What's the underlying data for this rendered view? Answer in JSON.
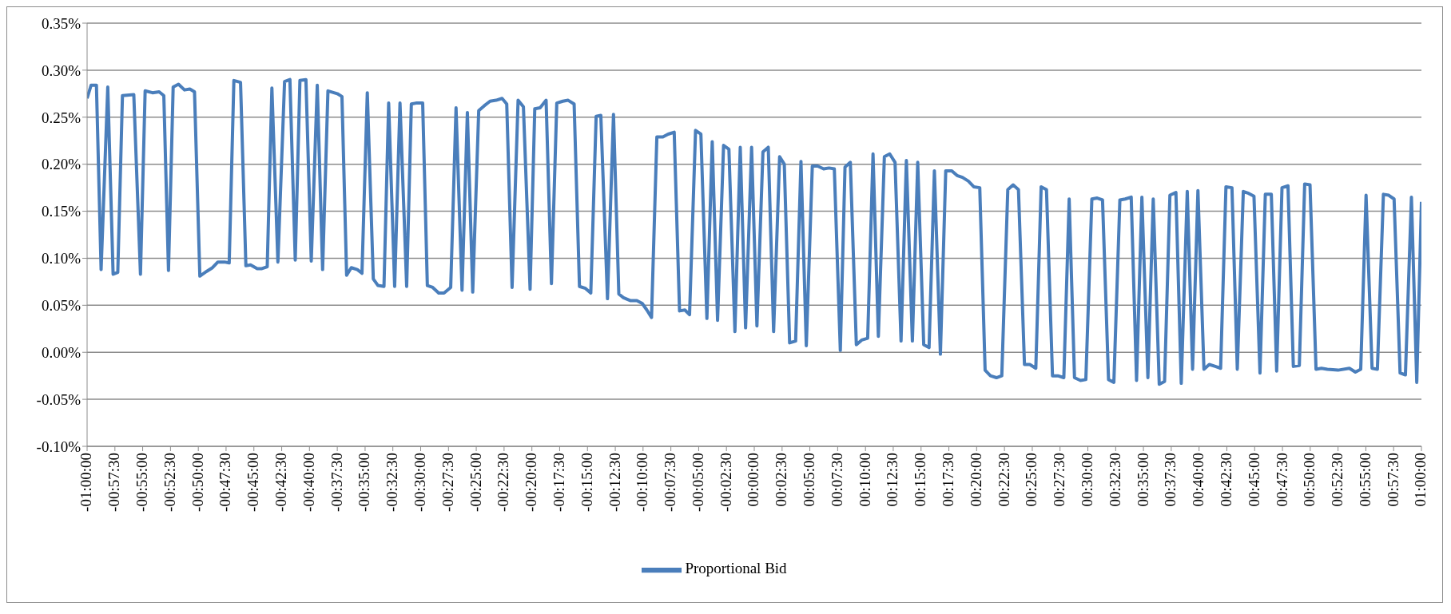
{
  "chart_data": {
    "type": "line",
    "x": [
      -1.0,
      -0.994,
      -0.986,
      -0.979,
      -0.969,
      -0.961,
      -0.954,
      -0.947,
      -0.93,
      -0.92,
      -0.913,
      -0.902,
      -0.892,
      -0.885,
      -0.878,
      -0.871,
      -0.863,
      -0.854,
      -0.846,
      -0.839,
      -0.831,
      -0.821,
      -0.812,
      -0.804,
      -0.794,
      -0.787,
      -0.78,
      -0.77,
      -0.762,
      -0.755,
      -0.745,
      -0.738,
      -0.73,
      -0.723,
      -0.714,
      -0.704,
      -0.696,
      -0.688,
      -0.681,
      -0.672,
      -0.664,
      -0.655,
      -0.647,
      -0.639,
      -0.625,
      -0.618,
      -0.611,
      -0.604,
      -0.595,
      -0.588,
      -0.58,
      -0.571,
      -0.564,
      -0.555,
      -0.548,
      -0.539,
      -0.531,
      -0.521,
      -0.514,
      -0.507,
      -0.497,
      -0.49,
      -0.482,
      -0.473,
      -0.465,
      -0.455,
      -0.447,
      -0.438,
      -0.43,
      -0.422,
      -0.413,
      -0.405,
      -0.396,
      -0.387,
      -0.378,
      -0.371,
      -0.363,
      -0.354,
      -0.346,
      -0.336,
      -0.329,
      -0.321,
      -0.312,
      -0.304,
      -0.296,
      -0.287,
      -0.279,
      -0.27,
      -0.262,
      -0.253,
      -0.245,
      -0.237,
      -0.23,
      -0.22,
      -0.211,
      -0.203,
      -0.196,
      -0.186,
      -0.176,
      -0.168,
      -0.161,
      -0.154,
      -0.146,
      -0.137,
      -0.129,
      -0.12,
      -0.112,
      -0.104,
      -0.097,
      -0.088,
      -0.08,
      -0.071,
      -0.063,
      -0.055,
      -0.046,
      -0.038,
      -0.029,
      -0.021,
      -0.013,
      -0.004,
      0.004,
      0.013,
      0.021,
      0.029,
      0.038,
      0.045,
      0.053,
      0.062,
      0.07,
      0.078,
      0.087,
      0.095,
      0.104,
      0.112,
      0.12,
      0.129,
      0.136,
      0.144,
      0.153,
      0.161,
      0.17,
      0.178,
      0.186,
      0.195,
      0.203,
      0.211,
      0.22,
      0.228,
      0.237,
      0.245,
      0.254,
      0.262,
      0.27,
      0.279,
      0.287,
      0.296,
      0.304,
      0.312,
      0.321,
      0.329,
      0.338,
      0.346,
      0.354,
      0.363,
      0.371,
      0.38,
      0.388,
      0.396,
      0.405,
      0.413,
      0.422,
      0.43,
      0.438,
      0.447,
      0.455,
      0.464,
      0.472,
      0.48,
      0.489,
      0.497,
      0.506,
      0.514,
      0.522,
      0.531,
      0.539,
      0.548,
      0.556,
      0.565,
      0.573,
      0.581,
      0.59,
      0.598,
      0.607,
      0.615,
      0.623,
      0.632,
      0.64,
      0.649,
      0.657,
      0.665,
      0.674,
      0.682,
      0.691,
      0.699,
      0.707,
      0.716,
      0.724,
      0.733,
      0.741,
      0.749,
      0.758,
      0.766,
      0.775,
      0.783,
      0.791,
      0.8,
      0.808,
      0.817,
      0.825,
      0.833,
      0.842,
      0.85,
      0.859,
      0.875,
      0.892,
      0.901,
      0.909,
      0.917,
      0.926,
      0.934,
      0.943,
      0.951,
      0.959,
      0.968,
      0.976,
      0.985,
      0.993,
      1.0
    ],
    "series": [
      {
        "name": "Proportional Bid",
        "color": "#4a7ebb",
        "values": [
          0.27,
          0.284,
          0.284,
          0.088,
          0.282,
          0.083,
          0.085,
          0.273,
          0.274,
          0.083,
          0.278,
          0.276,
          0.277,
          0.273,
          0.087,
          0.282,
          0.285,
          0.279,
          0.28,
          0.277,
          0.081,
          0.086,
          0.09,
          0.096,
          0.096,
          0.095,
          0.289,
          0.287,
          0.092,
          0.093,
          0.089,
          0.089,
          0.091,
          0.281,
          0.096,
          0.288,
          0.29,
          0.098,
          0.289,
          0.29,
          0.097,
          0.284,
          0.088,
          0.278,
          0.275,
          0.272,
          0.082,
          0.09,
          0.088,
          0.084,
          0.276,
          0.078,
          0.071,
          0.07,
          0.265,
          0.07,
          0.265,
          0.07,
          0.264,
          0.265,
          0.265,
          0.071,
          0.069,
          0.063,
          0.063,
          0.069,
          0.26,
          0.066,
          0.255,
          0.064,
          0.257,
          0.262,
          0.267,
          0.268,
          0.27,
          0.264,
          0.069,
          0.268,
          0.261,
          0.067,
          0.259,
          0.26,
          0.268,
          0.073,
          0.265,
          0.267,
          0.268,
          0.264,
          0.07,
          0.068,
          0.063,
          0.251,
          0.252,
          0.057,
          0.253,
          0.062,
          0.058,
          0.055,
          0.055,
          0.052,
          0.045,
          0.037,
          0.229,
          0.229,
          0.232,
          0.234,
          0.044,
          0.045,
          0.04,
          0.236,
          0.232,
          0.036,
          0.224,
          0.034,
          0.22,
          0.216,
          0.022,
          0.218,
          0.026,
          0.218,
          0.028,
          0.213,
          0.218,
          0.022,
          0.208,
          0.2,
          0.01,
          0.012,
          0.203,
          0.007,
          0.198,
          0.198,
          0.195,
          0.196,
          0.195,
          0.002,
          0.197,
          0.202,
          0.008,
          0.013,
          0.015,
          0.211,
          0.017,
          0.208,
          0.211,
          0.202,
          0.012,
          0.204,
          0.012,
          0.202,
          0.008,
          0.005,
          0.193,
          -0.002,
          0.193,
          0.193,
          0.188,
          0.186,
          0.182,
          0.176,
          0.175,
          -0.019,
          -0.025,
          -0.027,
          -0.025,
          0.173,
          0.178,
          0.173,
          -0.013,
          -0.013,
          -0.017,
          0.176,
          0.173,
          -0.025,
          -0.025,
          -0.027,
          0.163,
          -0.027,
          -0.03,
          -0.029,
          0.163,
          0.164,
          0.162,
          -0.029,
          -0.032,
          0.162,
          0.163,
          0.165,
          -0.03,
          0.165,
          -0.027,
          0.163,
          -0.034,
          -0.031,
          0.167,
          0.17,
          -0.033,
          0.171,
          -0.018,
          0.172,
          -0.018,
          -0.013,
          -0.015,
          -0.017,
          0.176,
          0.175,
          -0.018,
          0.171,
          0.169,
          0.166,
          -0.022,
          0.168,
          0.168,
          -0.02,
          0.175,
          0.177,
          -0.015,
          -0.014,
          0.179,
          0.178,
          -0.018,
          -0.017,
          -0.018,
          -0.019,
          -0.017,
          -0.021,
          -0.018,
          0.167,
          -0.017,
          -0.018,
          0.168,
          0.167,
          0.163,
          -0.022,
          -0.024,
          0.165,
          -0.032,
          0.16
        ]
      }
    ],
    "xlim": [
      -1,
      1
    ],
    "xticks": [
      {
        "value": -1,
        "label": "-01:00:00"
      },
      {
        "value": -0.9583,
        "label": "-00:57:30"
      },
      {
        "value": -0.9167,
        "label": "-00:55:00"
      },
      {
        "value": -0.875,
        "label": "-00:52:30"
      },
      {
        "value": -0.8333,
        "label": "-00:50:00"
      },
      {
        "value": -0.7917,
        "label": "-00:47:30"
      },
      {
        "value": -0.75,
        "label": "-00:45:00"
      },
      {
        "value": -0.7083,
        "label": "-00:42:30"
      },
      {
        "value": -0.6667,
        "label": "-00:40:00"
      },
      {
        "value": -0.625,
        "label": "-00:37:30"
      },
      {
        "value": -0.5833,
        "label": "-00:35:00"
      },
      {
        "value": -0.5417,
        "label": "-00:32:30"
      },
      {
        "value": -0.5,
        "label": "-00:30:00"
      },
      {
        "value": -0.4583,
        "label": "-00:27:30"
      },
      {
        "value": -0.4167,
        "label": "-00:25:00"
      },
      {
        "value": -0.375,
        "label": "-00:22:30"
      },
      {
        "value": -0.3333,
        "label": "-00:20:00"
      },
      {
        "value": -0.2917,
        "label": "-00:17:30"
      },
      {
        "value": -0.25,
        "label": "-00:15:00"
      },
      {
        "value": -0.2083,
        "label": "-00:12:30"
      },
      {
        "value": -0.1667,
        "label": "-00:10:00"
      },
      {
        "value": -0.125,
        "label": "-00:07:30"
      },
      {
        "value": -0.0833,
        "label": "-00:05:00"
      },
      {
        "value": -0.0417,
        "label": "-00:02:30"
      },
      {
        "value": 0,
        "label": "00:00:00"
      },
      {
        "value": 0.0417,
        "label": "00:02:30"
      },
      {
        "value": 0.0833,
        "label": "00:05:00"
      },
      {
        "value": 0.125,
        "label": "00:07:30"
      },
      {
        "value": 0.1667,
        "label": "00:10:00"
      },
      {
        "value": 0.2083,
        "label": "00:12:30"
      },
      {
        "value": 0.25,
        "label": "00:15:00"
      },
      {
        "value": 0.2917,
        "label": "00:17:30"
      },
      {
        "value": 0.3333,
        "label": "00:20:00"
      },
      {
        "value": 0.375,
        "label": "00:22:30"
      },
      {
        "value": 0.4167,
        "label": "00:25:00"
      },
      {
        "value": 0.4583,
        "label": "00:27:30"
      },
      {
        "value": 0.5,
        "label": "00:30:00"
      },
      {
        "value": 0.5417,
        "label": "00:32:30"
      },
      {
        "value": 0.5833,
        "label": "00:35:00"
      },
      {
        "value": 0.625,
        "label": "00:37:30"
      },
      {
        "value": 0.6667,
        "label": "00:40:00"
      },
      {
        "value": 0.7083,
        "label": "00:42:30"
      },
      {
        "value": 0.75,
        "label": "00:45:00"
      },
      {
        "value": 0.7917,
        "label": "00:47:30"
      },
      {
        "value": 0.8333,
        "label": "00:50:00"
      },
      {
        "value": 0.875,
        "label": "00:52:30"
      },
      {
        "value": 0.9167,
        "label": "00:55:00"
      },
      {
        "value": 0.9583,
        "label": "00:57:30"
      },
      {
        "value": 1,
        "label": "01:00:00"
      }
    ],
    "ylim": [
      -0.1,
      0.35
    ],
    "yticks": [
      {
        "value": -0.1,
        "label": "-0.10%"
      },
      {
        "value": -0.05,
        "label": "-0.05%"
      },
      {
        "value": 0,
        "label": "0.00%"
      },
      {
        "value": 0.05,
        "label": "0.05%"
      },
      {
        "value": 0.1,
        "label": "0.10%"
      },
      {
        "value": 0.15,
        "label": "0.15%"
      },
      {
        "value": 0.2,
        "label": "0.20%"
      },
      {
        "value": 0.25,
        "label": "0.25%"
      },
      {
        "value": 0.3,
        "label": "0.30%"
      },
      {
        "value": 0.35,
        "label": "0.35%"
      }
    ],
    "grid": "y",
    "legend": "bottom",
    "marker": "none",
    "line_style": "solid"
  }
}
